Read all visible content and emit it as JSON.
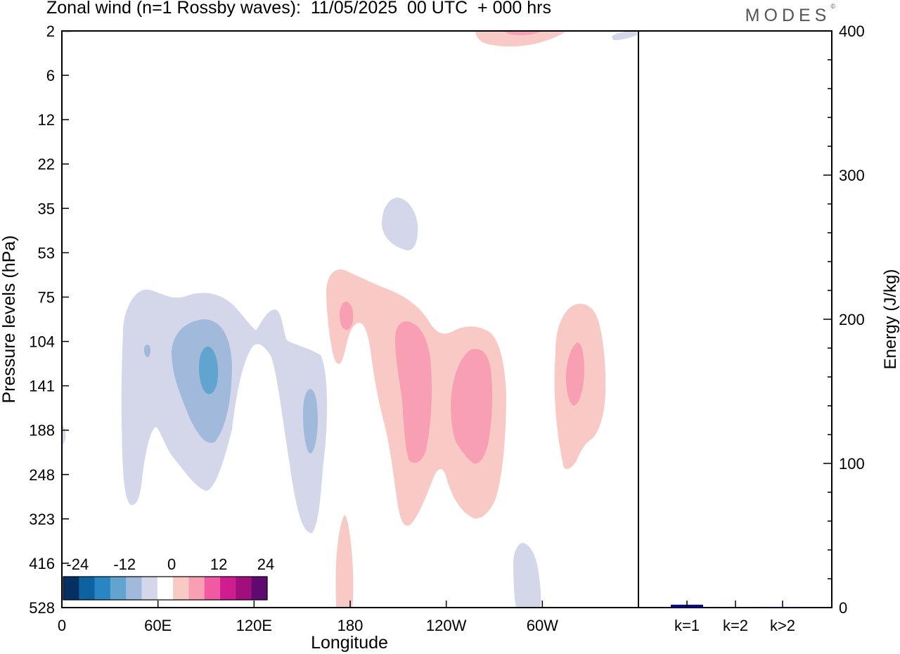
{
  "header": {
    "title": "Zonal wind (n=1 Rossby waves):  11/05/2025  00 UTC  + 000 hrs",
    "logo": "MODES",
    "logo_mark": "©"
  },
  "chart_data": [
    {
      "type": "heatmap",
      "title": "Zonal wind (n=1 Rossby waves):  11/05/2025  00 UTC  + 000 hrs",
      "xlabel": "Longitude",
      "ylabel": "Pressure levels (hPa)",
      "x_ticks": [
        "0",
        "60E",
        "120E",
        "180",
        "120W",
        "60W"
      ],
      "y_ticks": [
        "2",
        "6",
        "12",
        "22",
        "35",
        "53",
        "75",
        "104",
        "141",
        "188",
        "248",
        "323",
        "416",
        "528"
      ],
      "colorbar": {
        "labels": [
          "-24",
          "-12",
          "0",
          "12",
          "24"
        ],
        "colors": [
          "#053061",
          "#0f62a0",
          "#2a86c2",
          "#62a4d0",
          "#a1b9da",
          "#d4d6e9",
          "#ffffff",
          "#f9c9c6",
          "#f89fb4",
          "#ef5aa1",
          "#cf1c8e",
          "#a10f7e",
          "#5e0a6f"
        ]
      },
      "x_range": [
        0,
        360
      ],
      "y_range_levels": [
        "2",
        "528"
      ],
      "features": [
        {
          "name": "negative anomaly 45E-150E",
          "lon_range": [
            40,
            152
          ],
          "level_range": [
            "75",
            "323"
          ],
          "peak_level": "141",
          "min_value": -12
        },
        {
          "name": "negative anomaly near 155E",
          "lon_range": [
            150,
            165
          ],
          "level_range": [
            "104",
            "416"
          ],
          "min_value": -8
        },
        {
          "name": "negative anomaly near 160W",
          "lon_range": [
            196,
            224
          ],
          "level_range": [
            "35",
            "53"
          ],
          "min_value": -4
        },
        {
          "name": "positive anomaly 180-90W",
          "lon_range": [
            165,
            278
          ],
          "level_range": [
            "75",
            "323"
          ],
          "peak_level": "141",
          "max_value": 8
        },
        {
          "name": "positive anomaly near 30W",
          "lon_range": [
            308,
            342
          ],
          "level_range": [
            "75",
            "248"
          ],
          "max_value": 8
        },
        {
          "name": "positive anomaly near 180 surface",
          "lon_range": [
            172,
            182
          ],
          "level_range": [
            "323",
            "528"
          ],
          "max_value": 4
        },
        {
          "name": "negative anomaly near 70W surface",
          "lon_range": [
            284,
            300
          ],
          "level_range": [
            "416",
            "528"
          ],
          "min_value": -4
        },
        {
          "name": "positive anomaly near 80W top",
          "lon_range": [
            260,
            310
          ],
          "level_range": [
            "2",
            "6"
          ],
          "max_value": 8
        }
      ]
    },
    {
      "type": "bar",
      "ylabel": "Energy (J/kg)",
      "categories": [
        "k=1",
        "k=2",
        "k>2"
      ],
      "values": [
        2,
        0,
        0.5
      ],
      "ylim": [
        0,
        400
      ],
      "y_ticks": [
        "0",
        "100",
        "200",
        "300",
        "400"
      ],
      "bar_color": "#0b0b7a"
    }
  ]
}
